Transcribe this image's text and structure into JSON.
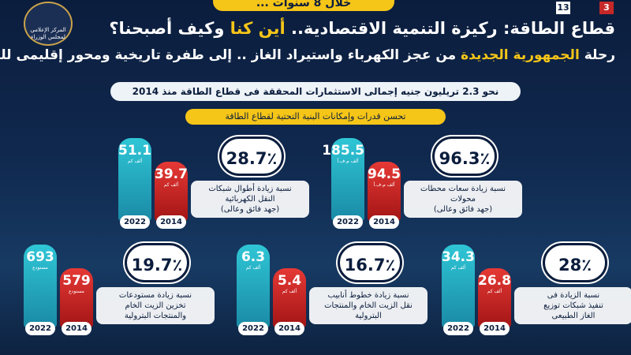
{
  "header": {
    "ribbon": "خلال 8 سنوات ...",
    "logo_text": "المركز الإعلامي لمجلس الوزراء",
    "page_numbers": [
      "3",
      "13"
    ],
    "title": [
      "قطاع الطاقة: ركيزة التنمية الاقتصادية.. ",
      "أين كنا ",
      "وكيف أصبحنا؟"
    ],
    "subtitle": [
      "رحلة ",
      "الجمهورية الجديدة",
      " من عجز الكهرباء واستيراد الغاز .. إلى طفرة تاريخية ومحور إقليمى للطاقة"
    ],
    "banner": "نحو 2.3 تريليون جنيه إجمالى الاستثمارات المحققة فى قطاع الطاقة منذ 2014",
    "section": "تحسن قدرات وإمكانات البنية التحتية لقطاع الطاقة"
  },
  "cards": [
    {
      "percent": "96.3٪",
      "text": [
        "نسبة زيادة سعات محطات",
        "محولات",
        "(جهد فائق وعالى)"
      ],
      "new": {
        "year": "2022",
        "value": "185.5",
        "unit": "ألف م.ف.أ"
      },
      "old": {
        "year": "2014",
        "value": "94.5",
        "unit": "ألف م.ف.أ"
      }
    },
    {
      "percent": "28.7٪",
      "text": [
        "نسبة زيادة أطوال شبكات",
        "النقل الكهربائية",
        "(جهد فائق وعالى)"
      ],
      "new": {
        "year": "2022",
        "value": "51.1",
        "unit": "ألف كم"
      },
      "old": {
        "year": "2014",
        "value": "39.7",
        "unit": "ألف كم"
      }
    },
    {
      "percent": "28٪",
      "text": [
        "نسبة الزيادة فى",
        "تنفيذ شبكات توزيع",
        "الغاز الطبيعى"
      ],
      "new": {
        "year": "2022",
        "value": "34.3",
        "unit": "ألف كم"
      },
      "old": {
        "year": "2014",
        "value": "26.8",
        "unit": "ألف كم"
      }
    },
    {
      "percent": "16.7٪",
      "text": [
        "نسبة زيادة خطوط أنابيب",
        "نقل الزيت الخام والمنتجات",
        "البترولية"
      ],
      "new": {
        "year": "2022",
        "value": "6.3",
        "unit": "ألف كم"
      },
      "old": {
        "year": "2014",
        "value": "5.4",
        "unit": "ألف كم"
      }
    },
    {
      "percent": "19.7٪",
      "text": [
        "نسبة زيادة مستودعات",
        "تخزين الزيت الخام",
        "والمنتجات البترولية"
      ],
      "new": {
        "year": "2022",
        "value": "693",
        "unit": "مستودع"
      },
      "old": {
        "year": "2014",
        "value": "579",
        "unit": "مستودع"
      }
    }
  ]
}
